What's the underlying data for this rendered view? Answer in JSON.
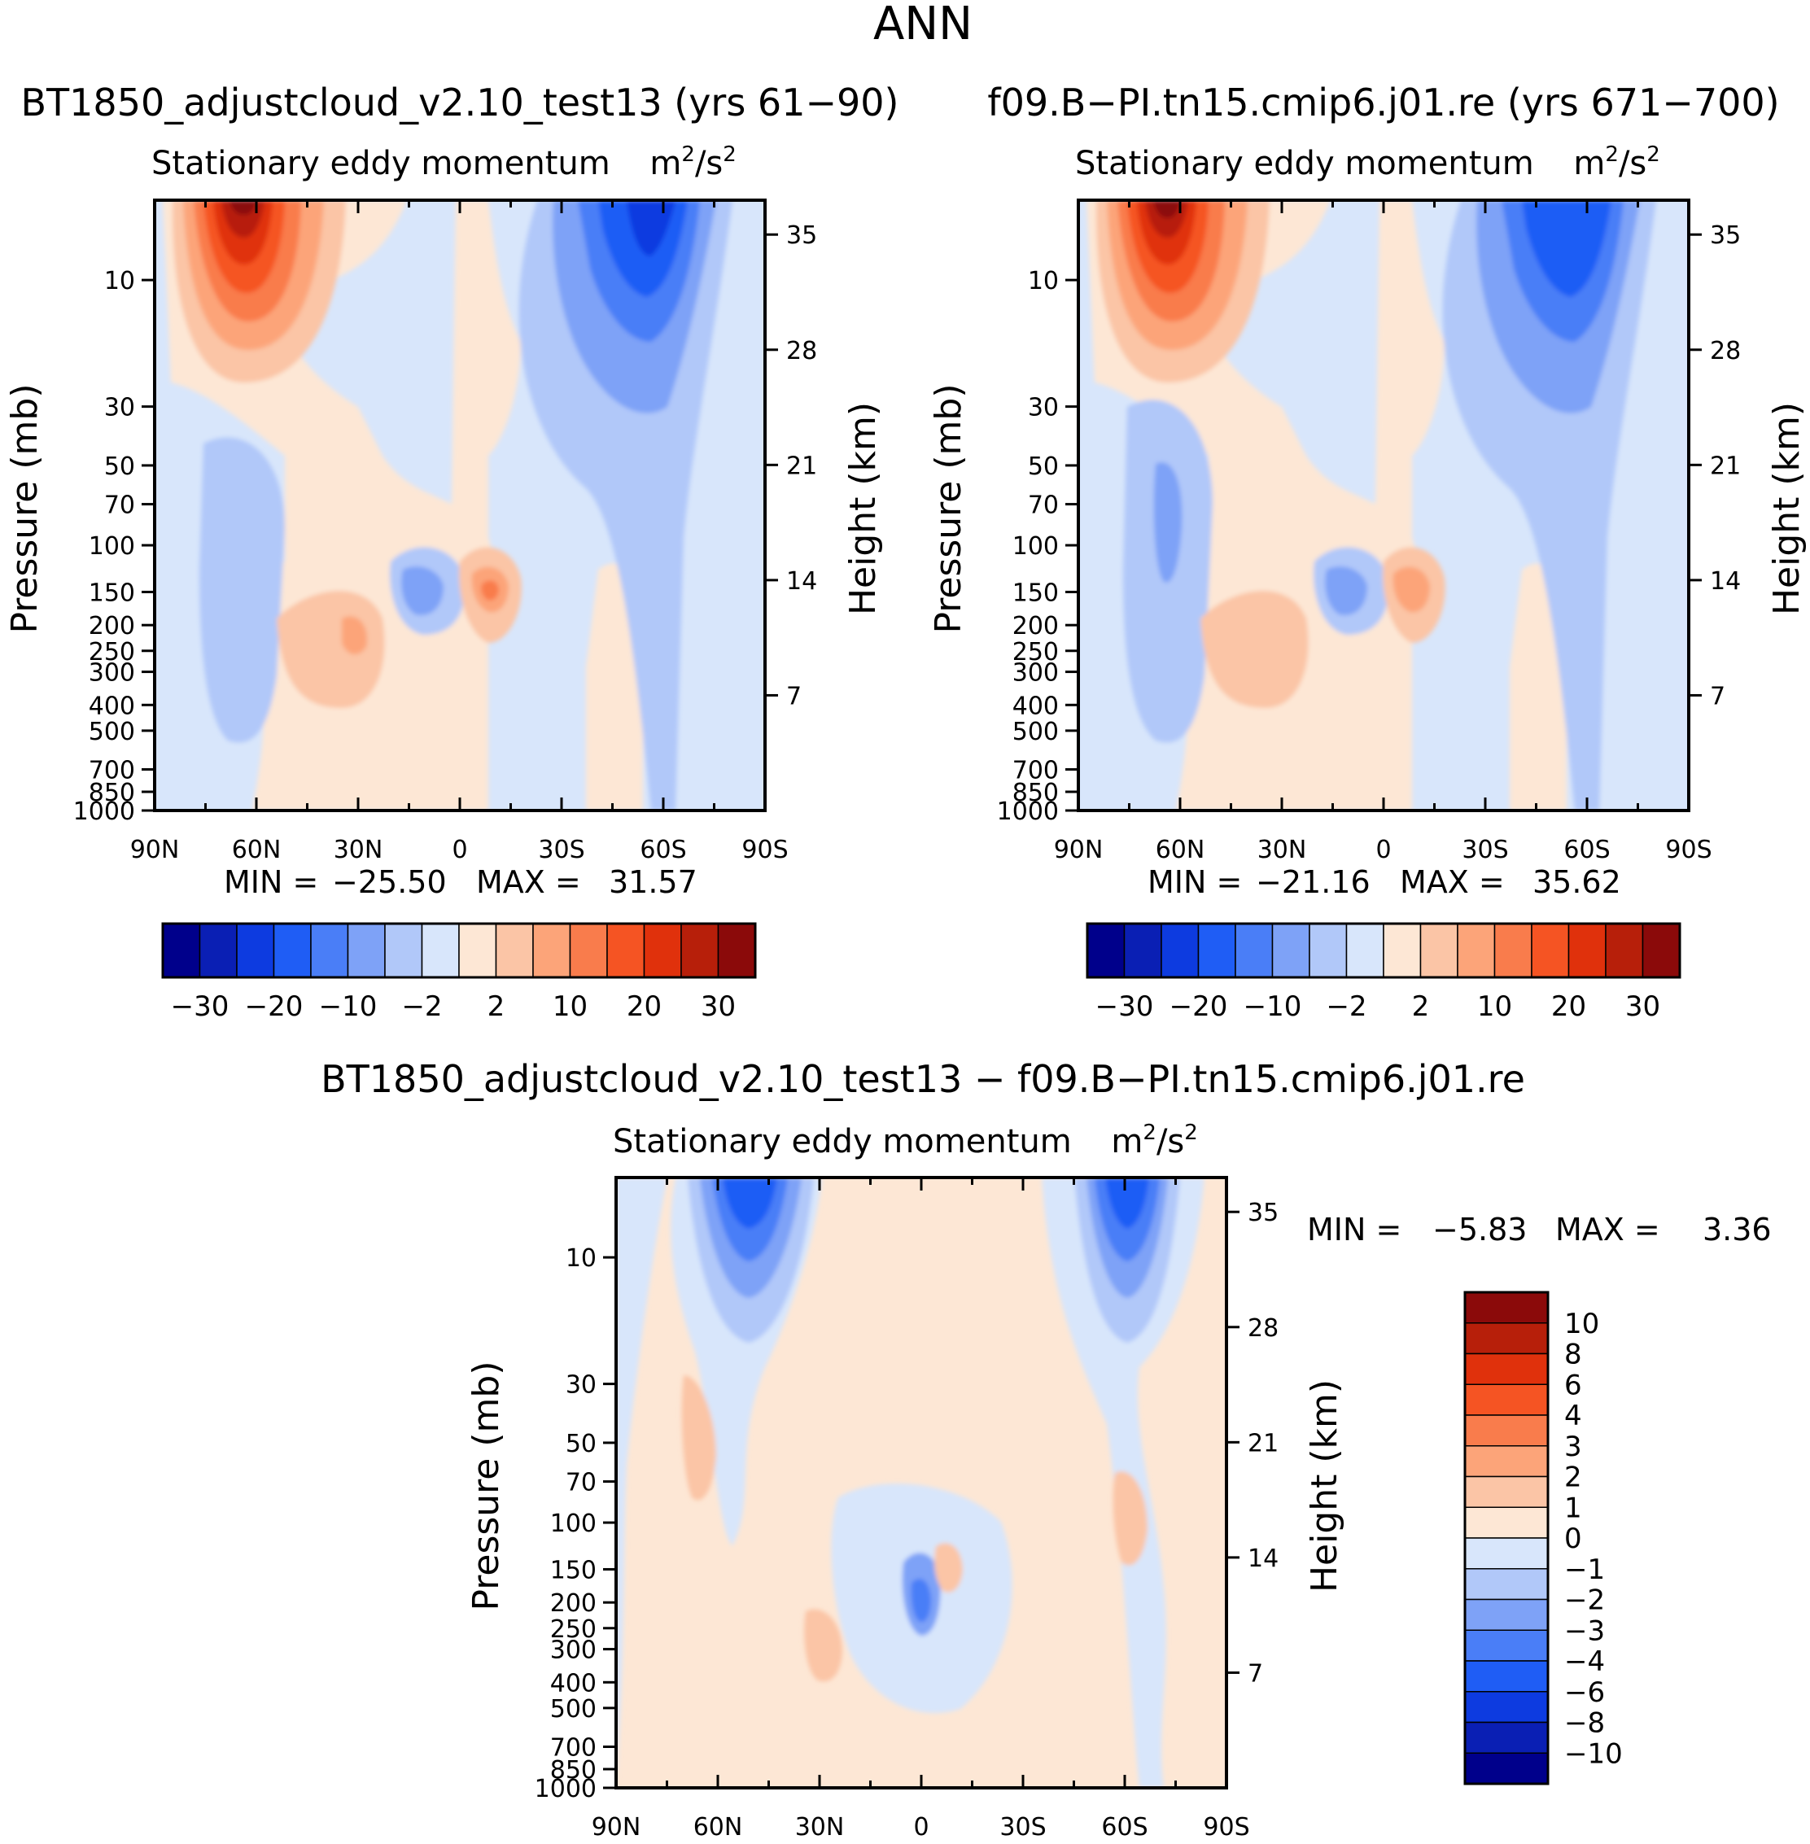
{
  "figure": {
    "title": "ANN"
  },
  "chart_data": [
    {
      "type": "contour",
      "case_title": "BT1850_adjustcloud_v2.10_test13 (yrs 61−90)",
      "title": "Stationary eddy momentum",
      "units": "m²/s²",
      "units_base": "m",
      "units_mid": "2",
      "units_tail": "/s",
      "units_end": "2",
      "xlabel": "",
      "ylabel": "Pressure (mb)",
      "y2label": "Height (km)",
      "x_ticks": [
        "90N",
        "60N",
        "30N",
        "0",
        "30S",
        "60S",
        "90S"
      ],
      "y_ticks": [
        "10",
        "30",
        "50",
        "70",
        "100",
        "150",
        "200",
        "250",
        "300",
        "400",
        "500",
        "700",
        "850",
        "1000"
      ],
      "y2_ticks": [
        "35",
        "28",
        "21",
        "14",
        "7"
      ],
      "min_label": "MIN =",
      "min_value": "−25.50",
      "max_label": "MAX =",
      "max_value": "31.57",
      "levels": [
        -30,
        -25,
        -20,
        -15,
        -10,
        -5,
        -2,
        2,
        5,
        10,
        15,
        20,
        25,
        30
      ],
      "colorbar_labels": [
        "−30",
        "−20",
        "−10",
        "−2",
        "2",
        "10",
        "20",
        "30"
      ],
      "features": [
        {
          "lat": 60,
          "p_pct": 0.0,
          "value": 31.57,
          "extent": "stratosphere"
        },
        {
          "lat": -60,
          "p_pct": 0.0,
          "value": -25.5,
          "extent": "stratosphere"
        },
        {
          "lat": 28,
          "p_pct": 0.72,
          "value": 12
        },
        {
          "lat": -8,
          "p_pct": 0.65,
          "value": 15
        },
        {
          "lat": 17,
          "p_pct": 0.64,
          "value": -10
        }
      ]
    },
    {
      "type": "contour",
      "case_title": "f09.B−PI.tn15.cmip6.j01.re (yrs 671−700)",
      "title": "Stationary eddy momentum",
      "units": "m²/s²",
      "units_base": "m",
      "units_mid": "2",
      "units_tail": "/s",
      "units_end": "2",
      "xlabel": "",
      "ylabel": "Pressure (mb)",
      "y2label": "Height (km)",
      "x_ticks": [
        "90N",
        "60N",
        "30N",
        "0",
        "30S",
        "60S",
        "90S"
      ],
      "y_ticks": [
        "10",
        "30",
        "50",
        "70",
        "100",
        "150",
        "200",
        "250",
        "300",
        "400",
        "500",
        "700",
        "850",
        "1000"
      ],
      "y2_ticks": [
        "35",
        "28",
        "21",
        "14",
        "7"
      ],
      "min_label": "MIN =",
      "min_value": "−21.16",
      "max_label": "MAX =",
      "max_value": "35.62",
      "levels": [
        -30,
        -25,
        -20,
        -15,
        -10,
        -5,
        -2,
        2,
        5,
        10,
        15,
        20,
        25,
        30
      ],
      "colorbar_labels": [
        "−30",
        "−20",
        "−10",
        "−2",
        "2",
        "10",
        "20",
        "30"
      ],
      "features": [
        {
          "lat": 60,
          "p_pct": 0.0,
          "value": 35.62,
          "extent": "stratosphere"
        },
        {
          "lat": -60,
          "p_pct": 0.0,
          "value": -21.16,
          "extent": "stratosphere"
        },
        {
          "lat": 28,
          "p_pct": 0.72,
          "value": 12
        },
        {
          "lat": -8,
          "p_pct": 0.65,
          "value": 10
        },
        {
          "lat": 17,
          "p_pct": 0.64,
          "value": -10
        }
      ]
    },
    {
      "type": "contour",
      "case_title": "BT1850_adjustcloud_v2.10_test13 − f09.B−PI.tn15.cmip6.j01.re",
      "title": "Stationary eddy momentum",
      "units": "m²/s²",
      "units_base": "m",
      "units_mid": "2",
      "units_tail": "/s",
      "units_end": "2",
      "xlabel": "",
      "ylabel": "Pressure (mb)",
      "y2label": "Height (km)",
      "x_ticks": [
        "90N",
        "60N",
        "30N",
        "0",
        "30S",
        "60S",
        "90S"
      ],
      "y_ticks": [
        "10",
        "30",
        "50",
        "70",
        "100",
        "150",
        "200",
        "250",
        "300",
        "400",
        "500",
        "700",
        "850",
        "1000"
      ],
      "y2_ticks": [
        "35",
        "28",
        "21",
        "14",
        "7"
      ],
      "min_label": "MIN =",
      "min_value": "−5.83",
      "max_label": "MAX =",
      "max_value": "3.36",
      "levels": [
        -10,
        -8,
        -6,
        -4,
        -3,
        -2,
        -1,
        0,
        1,
        2,
        3,
        4,
        6,
        8,
        10
      ],
      "colorbar_labels": [
        "10",
        "8",
        "6",
        "4",
        "3",
        "2",
        "1",
        "0",
        "−1",
        "−2",
        "−3",
        "−4",
        "−6",
        "−8",
        "−10"
      ],
      "features": [
        {
          "lat": 50,
          "p_pct": 0.0,
          "value": -5.5,
          "extent": "stratosphere"
        },
        {
          "lat": -63,
          "p_pct": 0.0,
          "value": -5.83,
          "extent": "stratosphere"
        },
        {
          "lat": 0,
          "p_pct": 0.7,
          "value": -4
        },
        {
          "lat": -7,
          "p_pct": 0.64,
          "value": 2
        },
        {
          "lat": 33,
          "p_pct": 0.79,
          "value": 1.5
        }
      ]
    }
  ],
  "colors": {
    "negative": [
      "#00008b",
      "#0a1fb4",
      "#0d3be0",
      "#1f5df5",
      "#4a7ef7",
      "#7ea2f7",
      "#b1c8f9",
      "#d8e6fb"
    ],
    "positive": [
      "#fde7d5",
      "#fbc5a6",
      "#fca479",
      "#f97c4c",
      "#f55423",
      "#e0310c",
      "#b71f0a",
      "#8b0a0a"
    ]
  }
}
